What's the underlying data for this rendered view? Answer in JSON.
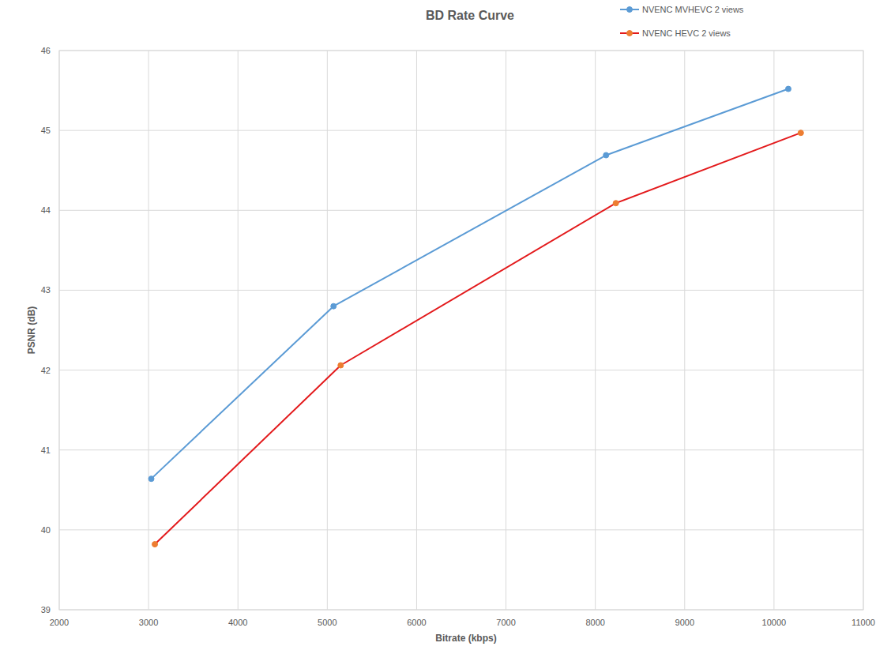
{
  "chart_data": {
    "type": "line",
    "title": "BD Rate Curve",
    "x_label": "Bitrate (kbps)",
    "y_label": "PSNR (dB)",
    "series": [
      {
        "name": "NVENC MVHEVC 2 views",
        "color": "#5b9bd5",
        "marker": "circle",
        "x": [
          3030,
          5070,
          8120,
          10160
        ],
        "values": [
          40.64,
          42.8,
          44.69,
          45.52
        ]
      },
      {
        "name": "NVENC HEVC 2 views",
        "color": "#e31a1c",
        "marker": "circle",
        "colors": [
          "#ed7d31",
          "#ed7d31",
          "#ed7d31",
          "#ed7d31"
        ],
        "x": [
          3070,
          5150,
          8230,
          10300
        ],
        "values": [
          39.82,
          42.06,
          44.09,
          44.97
        ]
      }
    ],
    "xlim": [
      2000,
      11000
    ],
    "xticks": [
      2000,
      3000,
      4000,
      5000,
      6000,
      7000,
      8000,
      9000,
      10000,
      11000
    ],
    "ylim": [
      39,
      46
    ],
    "yticks": [
      39,
      40,
      41,
      42,
      43,
      44,
      45,
      46
    ],
    "grid": true,
    "legend": "top-right"
  }
}
